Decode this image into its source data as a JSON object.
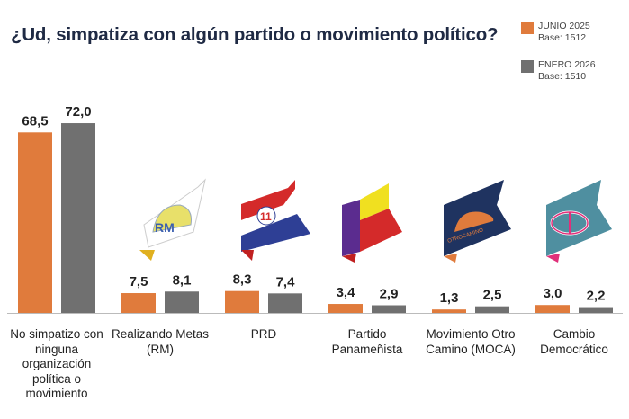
{
  "chart_data": {
    "type": "bar",
    "title": "¿Ud, simpatiza con algún partido o movimiento político?",
    "categories": [
      "No simpatizo con ninguna organización política o movimiento",
      "Realizando Metas (RM)",
      "PRD",
      "Partido Panameñista",
      "Movimiento Otro Camino (MOCA)",
      "Cambio Democrático"
    ],
    "series": [
      {
        "name": "JUNIO 2025",
        "base": "Base: 1512",
        "color": "#e07b3c",
        "values": [
          68.5,
          7.5,
          8.3,
          3.4,
          1.3,
          3.0
        ],
        "labels": [
          "68,5",
          "7,5",
          "8,3",
          "3,4",
          "1,3",
          "3,0"
        ]
      },
      {
        "name": "ENERO 2026",
        "base": "Base: 1510",
        "color": "#707070",
        "values": [
          72.0,
          8.1,
          7.4,
          2.9,
          2.5,
          2.2
        ],
        "labels": [
          "72,0",
          "8,1",
          "7,4",
          "2,9",
          "2,5",
          "2,2"
        ]
      }
    ],
    "ylim": [
      0,
      75
    ],
    "legend": "top-right",
    "grid": false
  },
  "logos": [
    "RM",
    "11",
    "",
    "OTRO CAMINO",
    "CD"
  ]
}
